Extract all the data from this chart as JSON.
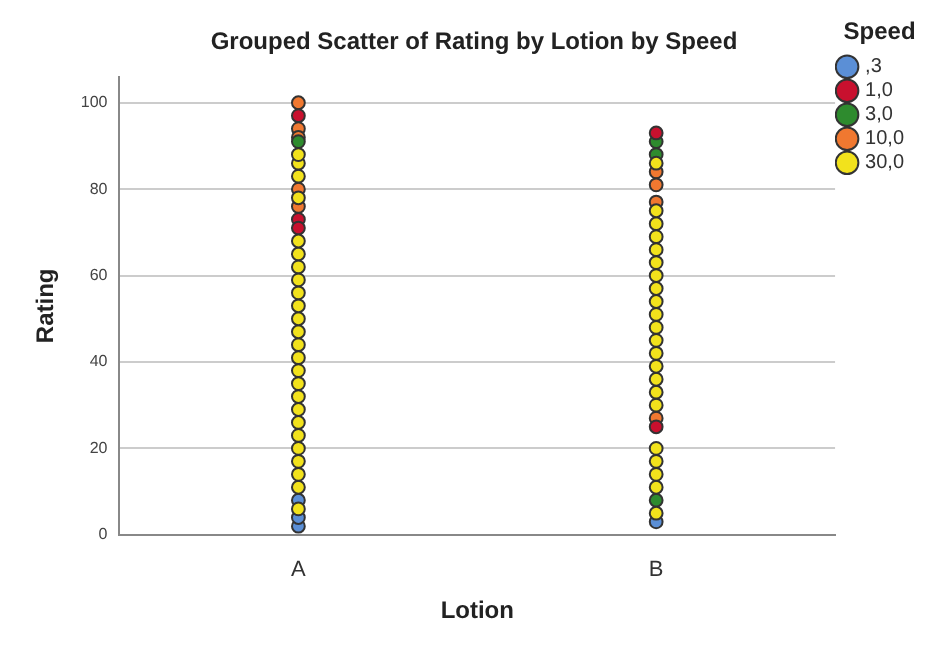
{
  "chart_data": {
    "type": "scatter",
    "title": "Grouped Scatter of Rating by Lotion by Speed",
    "xlabel": "Lotion",
    "ylabel": "Rating",
    "legend_title": "Speed",
    "categories": [
      "A",
      "B"
    ],
    "ylim": [
      0,
      106
    ],
    "yticks": [
      0,
      20,
      40,
      60,
      80,
      100
    ],
    "grid": "y",
    "legend": "top right",
    "marker": "circle",
    "series": [
      {
        "name": "30,0",
        "color": "#f2e21c",
        "x": [
          "A",
          "A",
          "A",
          "A",
          "A",
          "A",
          "A",
          "A",
          "A",
          "A",
          "A",
          "A",
          "A",
          "A",
          "A",
          "A",
          "A",
          "A",
          "A",
          "A",
          "A",
          "A",
          "A",
          "A",
          "A",
          "A",
          "B",
          "B",
          "B",
          "B",
          "B",
          "B",
          "B",
          "B",
          "B",
          "B",
          "B",
          "B",
          "B",
          "B",
          "B",
          "B",
          "B",
          "B",
          "B",
          "B",
          "B",
          "B"
        ],
        "values": [
          6,
          11,
          14,
          17,
          20,
          23,
          26,
          29,
          32,
          35,
          38,
          41,
          44,
          47,
          50,
          53,
          56,
          59,
          62,
          65,
          68,
          78,
          83,
          86,
          88,
          null,
          5,
          11,
          14,
          17,
          20,
          30,
          33,
          36,
          39,
          42,
          45,
          48,
          51,
          54,
          57,
          60,
          63,
          66,
          69,
          72,
          75,
          86
        ]
      },
      {
        "name": ",3",
        "color": "#5b8fd6",
        "x": [
          "A",
          "A",
          "A",
          "B"
        ],
        "values": [
          2,
          4,
          8,
          3
        ]
      },
      {
        "name": "1,0",
        "color": "#c8102e",
        "x": [
          "A",
          "A",
          "A",
          "B",
          "B"
        ],
        "values": [
          97,
          73,
          71,
          93,
          25
        ]
      },
      {
        "name": "3,0",
        "color": "#2e8b2e",
        "x": [
          "A",
          "B",
          "B",
          "B"
        ],
        "values": [
          91,
          91,
          88,
          8
        ]
      },
      {
        "name": "10,0",
        "color": "#f07830",
        "x": [
          "A",
          "A",
          "A",
          "A",
          "A",
          "B",
          "B",
          "B",
          "B"
        ],
        "values": [
          100,
          94,
          92,
          80,
          76,
          84,
          81,
          77,
          27
        ]
      }
    ]
  }
}
